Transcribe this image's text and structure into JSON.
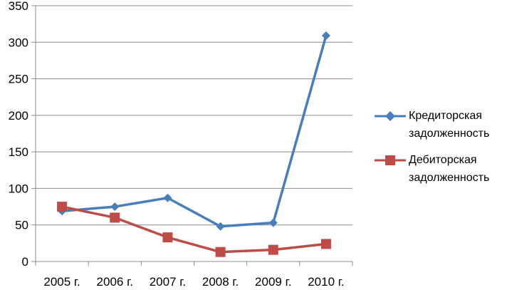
{
  "chart_data": {
    "type": "line",
    "categories": [
      "2005 г.",
      "2006 г.",
      "2007 г.",
      "2008 г.",
      "2009 г.",
      "2010 г."
    ],
    "series": [
      {
        "name": "Кредиторская задолженность",
        "values": [
          69,
          75,
          87,
          48,
          53,
          309
        ],
        "color": "#4a7ebb",
        "marker": "diamond"
      },
      {
        "name": "Дебиторская задолженность",
        "values": [
          75,
          60,
          33,
          13,
          16,
          24
        ],
        "color": "#be4b48",
        "marker": "square"
      }
    ],
    "y_ticks": [
      "0",
      "50",
      "100",
      "150",
      "200",
      "250",
      "300",
      "350"
    ],
    "ylim": [
      0,
      350
    ],
    "grid": true,
    "legend_position": "right"
  }
}
